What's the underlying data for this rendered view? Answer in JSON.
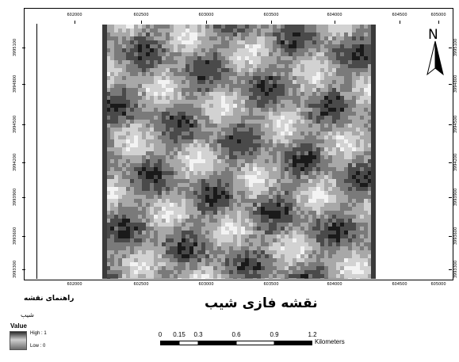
{
  "map": {
    "title": "نقشه فازی شیب",
    "x_ticks": [
      "602000",
      "602500",
      "603000",
      "603500",
      "604000",
      "604500",
      "605000"
    ],
    "y_ticks": [
      "3995100",
      "3994800",
      "3994500",
      "3994200",
      "3993900",
      "3993600",
      "3993300"
    ],
    "north_label": "N",
    "raster_palette": [
      "#1a1a1a",
      "#4a4a4a",
      "#7a7a7a",
      "#a8a8a8",
      "#d2d2d2",
      "#f3f3f3"
    ]
  },
  "legend": {
    "title": "راهنمای نقشه",
    "layer_name": "شیب",
    "value_label": "Value",
    "high_label": "High : 1",
    "low_label": "Low : 0"
  },
  "scale_bar": {
    "labels": [
      "0",
      "0.15",
      "0.3",
      "0.6",
      "0.9",
      "1.2"
    ],
    "unit": "Kilometers",
    "values_km": [
      0,
      0.15,
      0.3,
      0.6,
      0.9,
      1.2
    ]
  }
}
